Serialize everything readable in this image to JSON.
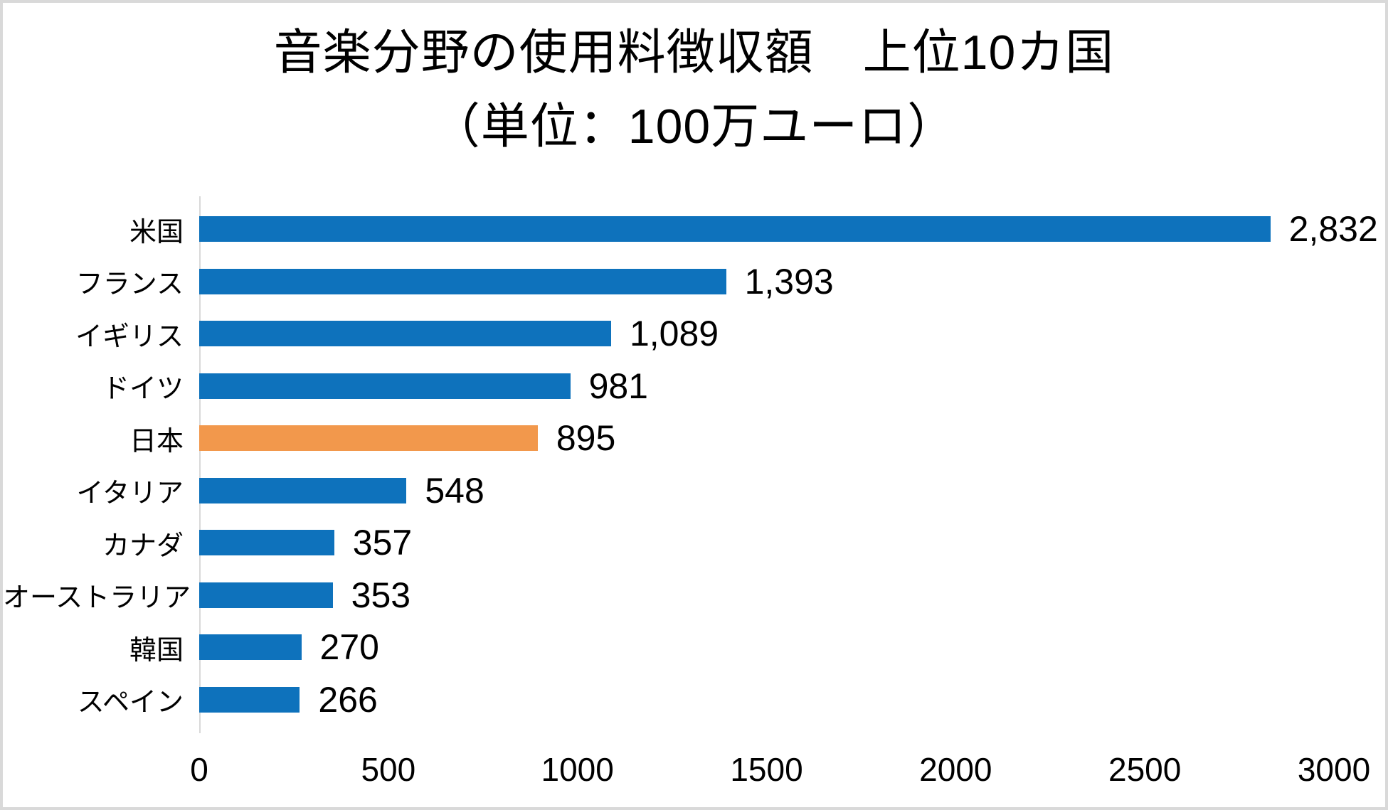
{
  "chart": {
    "title": "音楽分野の使用料徴収額　上位10カ国",
    "subtitle": "（単位：100万ユーロ）"
  },
  "colors": {
    "bar_blue": "#0e72bc",
    "bar_orange": "#f2984c",
    "axis_gray": "#d9d9d9",
    "text": "#000000"
  },
  "chart_data": {
    "type": "bar",
    "orientation": "horizontal",
    "title": "音楽分野の使用料徴収額　上位10カ国",
    "subtitle": "（単位：100万ユーロ）",
    "unit": "100万ユーロ",
    "xlim": [
      0,
      3000
    ],
    "grid": false,
    "legend": false,
    "categories": [
      "米国",
      "フランス",
      "イギリス",
      "ドイツ",
      "日本",
      "イタリア",
      "カナダ",
      "オーストラリア",
      "韓国",
      "スペイン"
    ],
    "values": [
      2832,
      1393,
      1089,
      981,
      895,
      548,
      357,
      353,
      270,
      266
    ],
    "value_labels": [
      "2,832",
      "1,393",
      "1,089",
      "981",
      "895",
      "548",
      "357",
      "353",
      "270",
      "266"
    ],
    "highlight_index": 4,
    "bar_colors": [
      "#0e72bc",
      "#0e72bc",
      "#0e72bc",
      "#0e72bc",
      "#f2984c",
      "#0e72bc",
      "#0e72bc",
      "#0e72bc",
      "#0e72bc",
      "#0e72bc"
    ],
    "x_ticks": [
      0,
      500,
      1000,
      1500,
      2000,
      2500,
      3000
    ],
    "x_tick_labels": [
      "0",
      "500",
      "1000",
      "1500",
      "2000",
      "2500",
      "3000"
    ]
  }
}
